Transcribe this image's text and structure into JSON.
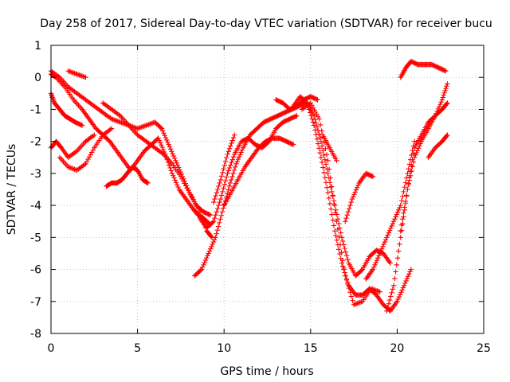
{
  "chart_data": {
    "type": "scatter",
    "title": "Day 258 of 2017, Sidereal Day-to-day VTEC variation (SDTVAR) for receiver bucu",
    "xlabel": "GPS time / hours",
    "ylabel": "SDTVAR / TECUs",
    "xlim": [
      0,
      25
    ],
    "ylim": [
      -8,
      1
    ],
    "x_ticks": [
      0,
      5,
      10,
      15,
      20,
      25
    ],
    "y_ticks": [
      1,
      0,
      -1,
      -2,
      -3,
      -4,
      -5,
      -6,
      -7,
      -8
    ],
    "grid": true,
    "grid_style": "dotted",
    "marker": "+",
    "series_color": "#ff0000",
    "series": [
      {
        "x": [
          0.0,
          0.3,
          0.8,
          1.3,
          1.8,
          2.2,
          2.6,
          3.0,
          3.4,
          3.8,
          4.2,
          4.6,
          5.0,
          5.4,
          5.8,
          6.2,
          6.6,
          7.0,
          7.4,
          7.8,
          8.2,
          8.5,
          8.8,
          9.0,
          9.2
        ],
        "y": [
          0.1,
          0.0,
          -0.3,
          -0.7,
          -1.0,
          -1.3,
          -1.6,
          -1.8,
          -2.0,
          -2.3,
          -2.6,
          -2.9,
          -2.6,
          -2.3,
          -2.1,
          -1.9,
          -2.4,
          -3.0,
          -3.5,
          -3.8,
          -4.1,
          -4.3,
          -4.4,
          -4.5,
          -4.6
        ]
      },
      {
        "x": [
          0.0,
          0.2,
          0.5,
          0.8,
          1.1,
          1.4,
          1.8
        ],
        "y": [
          -0.5,
          -0.8,
          -1.0,
          -1.2,
          -1.3,
          -1.4,
          -1.5
        ]
      },
      {
        "x": [
          0.0,
          0.3,
          0.6,
          1.0,
          1.5,
          2.0,
          2.5
        ],
        "y": [
          -2.2,
          -2.0,
          -2.2,
          -2.5,
          -2.3,
          -2.0,
          -1.8
        ]
      },
      {
        "x": [
          0.5,
          1.0,
          1.5,
          2.0,
          2.5,
          3.0,
          3.5
        ],
        "y": [
          -2.5,
          -2.8,
          -2.9,
          -2.7,
          -2.2,
          -1.8,
          -1.6
        ]
      },
      {
        "x": [
          0.0,
          0.5,
          1.0,
          1.5,
          2.0,
          2.5,
          3.0,
          3.5,
          4.0,
          4.5,
          5.0,
          5.5,
          6.0,
          6.4,
          6.8,
          7.2,
          7.6,
          8.0,
          8.4,
          8.8,
          9.2
        ],
        "y": [
          0.2,
          0.0,
          -0.3,
          -0.5,
          -0.7,
          -0.9,
          -1.1,
          -1.3,
          -1.4,
          -1.5,
          -1.6,
          -1.5,
          -1.4,
          -1.6,
          -2.1,
          -2.6,
          -3.1,
          -3.6,
          -4.0,
          -4.2,
          -4.3
        ]
      },
      {
        "x": [
          1.0,
          1.5,
          2.0
        ],
        "y": [
          0.2,
          0.1,
          0.0
        ]
      },
      {
        "x": [
          3.2,
          3.5,
          3.8,
          4.1,
          4.4,
          4.7,
          5.0,
          5.3,
          5.6
        ],
        "y": [
          -3.4,
          -3.3,
          -3.3,
          -3.2,
          -3.0,
          -2.8,
          -2.9,
          -3.2,
          -3.3
        ]
      },
      {
        "x": [
          3.0,
          3.5,
          4.0,
          4.5,
          5.0,
          5.5,
          6.0,
          6.5,
          7.0,
          7.5,
          8.0,
          8.5,
          9.0,
          9.3
        ],
        "y": [
          -0.8,
          -1.0,
          -1.2,
          -1.5,
          -1.8,
          -2.0,
          -2.2,
          -2.4,
          -2.7,
          -3.1,
          -3.6,
          -4.1,
          -4.8,
          -5.0
        ]
      },
      {
        "x": [
          8.3,
          8.7,
          9.1,
          9.5,
          9.9,
          10.3,
          10.7,
          11.1,
          11.5,
          11.9,
          12.3,
          12.7,
          13.1,
          13.5,
          13.9,
          14.3,
          14.7
        ],
        "y": [
          -6.2,
          -6.0,
          -5.5,
          -5.0,
          -4.2,
          -3.4,
          -2.7,
          -2.2,
          -1.8,
          -1.6,
          -1.4,
          -1.3,
          -1.2,
          -1.1,
          -1.0,
          -0.9,
          -0.8
        ]
      },
      {
        "x": [
          8.6,
          9.0,
          9.4,
          9.8,
          10.2,
          10.6,
          11.0,
          11.4,
          11.8,
          12.2,
          12.6,
          13.0,
          13.4,
          13.8,
          14.2
        ],
        "y": [
          -4.4,
          -4.7,
          -4.5,
          -3.8,
          -3.0,
          -2.4,
          -2.0,
          -1.9,
          -2.1,
          -2.2,
          -2.0,
          -1.6,
          -1.4,
          -1.3,
          -1.2
        ]
      },
      {
        "x": [
          9.4,
          9.8,
          10.2,
          10.6
        ],
        "y": [
          -3.9,
          -3.2,
          -2.4,
          -1.8
        ]
      },
      {
        "x": [
          10.0,
          10.4,
          10.8,
          11.2,
          11.6,
          12.0,
          12.4,
          12.8,
          13.2,
          13.6,
          14.0
        ],
        "y": [
          -4.0,
          -3.6,
          -3.2,
          -2.8,
          -2.5,
          -2.2,
          -2.0,
          -1.9,
          -1.9,
          -2.0,
          -2.1
        ]
      },
      {
        "x": [
          13.0,
          13.4,
          13.8,
          14.2,
          14.6,
          15.0,
          15.4
        ],
        "y": [
          -0.7,
          -0.8,
          -1.0,
          -0.9,
          -0.7,
          -0.6,
          -0.7
        ]
      },
      {
        "x": [
          14.0,
          14.4,
          14.8,
          15.2,
          15.6,
          16.0,
          16.4,
          16.8,
          17.2,
          17.6,
          18.0,
          18.4,
          18.8,
          19.2,
          19.6,
          20.0,
          20.4,
          20.8
        ],
        "y": [
          -0.9,
          -0.6,
          -0.8,
          -1.5,
          -2.5,
          -3.6,
          -4.8,
          -5.8,
          -6.5,
          -6.8,
          -6.8,
          -6.6,
          -6.8,
          -7.1,
          -7.3,
          -7.0,
          -6.5,
          -6.0
        ]
      },
      {
        "x": [
          14.8,
          15.2,
          15.6,
          16.0,
          16.4,
          16.8,
          17.2,
          17.6,
          18.0,
          18.4,
          18.8,
          19.2,
          19.6
        ],
        "y": [
          -0.8,
          -1.2,
          -2.0,
          -3.0,
          -4.0,
          -5.0,
          -5.8,
          -6.2,
          -6.0,
          -5.6,
          -5.4,
          -5.5,
          -5.8
        ]
      },
      {
        "x": [
          14.5,
          15.0,
          15.5,
          16.0,
          16.5,
          17.0,
          17.5,
          18.0,
          18.5,
          19.0
        ],
        "y": [
          -1.0,
          -0.8,
          -1.3,
          -2.6,
          -4.5,
          -6.2,
          -7.1,
          -7.0,
          -6.6,
          -6.7
        ]
      },
      {
        "x": [
          15.7,
          16.1,
          16.5
        ],
        "y": [
          -1.8,
          -2.2,
          -2.6
        ]
      },
      {
        "x": [
          17.0,
          17.4,
          17.8,
          18.2,
          18.6
        ],
        "y": [
          -4.5,
          -3.8,
          -3.3,
          -3.0,
          -3.1
        ]
      },
      {
        "x": [
          18.2,
          18.6,
          19.0,
          19.4,
          19.8,
          20.2,
          20.6,
          21.0
        ],
        "y": [
          -6.3,
          -6.0,
          -5.5,
          -5.0,
          -4.5,
          -4.0,
          -3.0,
          -2.0
        ]
      },
      {
        "x": [
          19.4,
          19.8,
          20.2,
          20.6,
          21.0,
          21.4,
          21.8,
          22.2,
          22.6,
          22.9
        ],
        "y": [
          -7.3,
          -6.5,
          -5.0,
          -3.5,
          -2.2,
          -1.8,
          -1.4,
          -1.2,
          -1.0,
          -0.8
        ]
      },
      {
        "x": [
          20.2,
          20.6,
          21.0,
          21.4,
          21.8,
          22.2,
          22.6,
          22.9
        ],
        "y": [
          -4.8,
          -3.5,
          -2.5,
          -2.0,
          -1.6,
          -1.2,
          -0.7,
          -0.2
        ]
      },
      {
        "x": [
          20.2,
          20.5,
          20.8,
          21.2,
          21.6,
          22.0,
          22.4,
          22.8
        ],
        "y": [
          0.0,
          0.3,
          0.5,
          0.4,
          0.4,
          0.4,
          0.3,
          0.2
        ]
      },
      {
        "x": [
          21.8,
          22.2,
          22.6,
          22.9
        ],
        "y": [
          -2.5,
          -2.2,
          -2.0,
          -1.8
        ]
      }
    ]
  }
}
